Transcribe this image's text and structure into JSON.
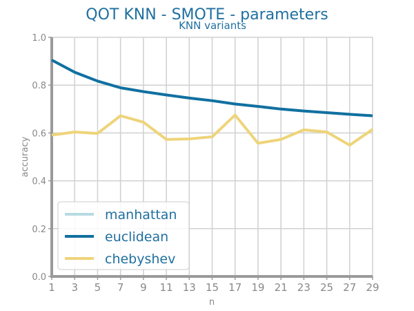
{
  "chart_data": {
    "type": "line",
    "title": "QOT KNN - SMOTE - parameters",
    "subtitle": "KNN variants",
    "xlabel": "n",
    "ylabel": "accuracy",
    "x": [
      1,
      3,
      5,
      7,
      9,
      11,
      13,
      15,
      17,
      19,
      21,
      23,
      25,
      27,
      29
    ],
    "xlim": [
      1,
      29
    ],
    "ylim": [
      0.0,
      1.0
    ],
    "xticks": [
      "1",
      "3",
      "5",
      "7",
      "9",
      "11",
      "13",
      "15",
      "17",
      "19",
      "21",
      "23",
      "25",
      "27",
      "29"
    ],
    "yticks": [
      "0.0",
      "0.2",
      "0.4",
      "0.6",
      "0.8",
      "1.0"
    ],
    "grid": true,
    "legend_position": "bottom-left",
    "series": [
      {
        "name": "manhattan",
        "color": "#b6dbe3",
        "values": [
          0.905,
          0.854,
          0.817,
          0.789,
          0.773,
          0.759,
          0.746,
          0.735,
          0.721,
          0.711,
          0.7,
          0.692,
          0.685,
          0.678,
          0.672
        ]
      },
      {
        "name": "euclidean",
        "color": "#1170a0",
        "values": [
          0.905,
          0.854,
          0.817,
          0.789,
          0.773,
          0.759,
          0.746,
          0.735,
          0.721,
          0.711,
          0.7,
          0.692,
          0.685,
          0.678,
          0.672
        ]
      },
      {
        "name": "chebyshev",
        "color": "#eed47a",
        "values": [
          0.591,
          0.604,
          0.598,
          0.672,
          0.645,
          0.573,
          0.575,
          0.584,
          0.675,
          0.557,
          0.573,
          0.613,
          0.604,
          0.549,
          0.615
        ]
      }
    ]
  }
}
